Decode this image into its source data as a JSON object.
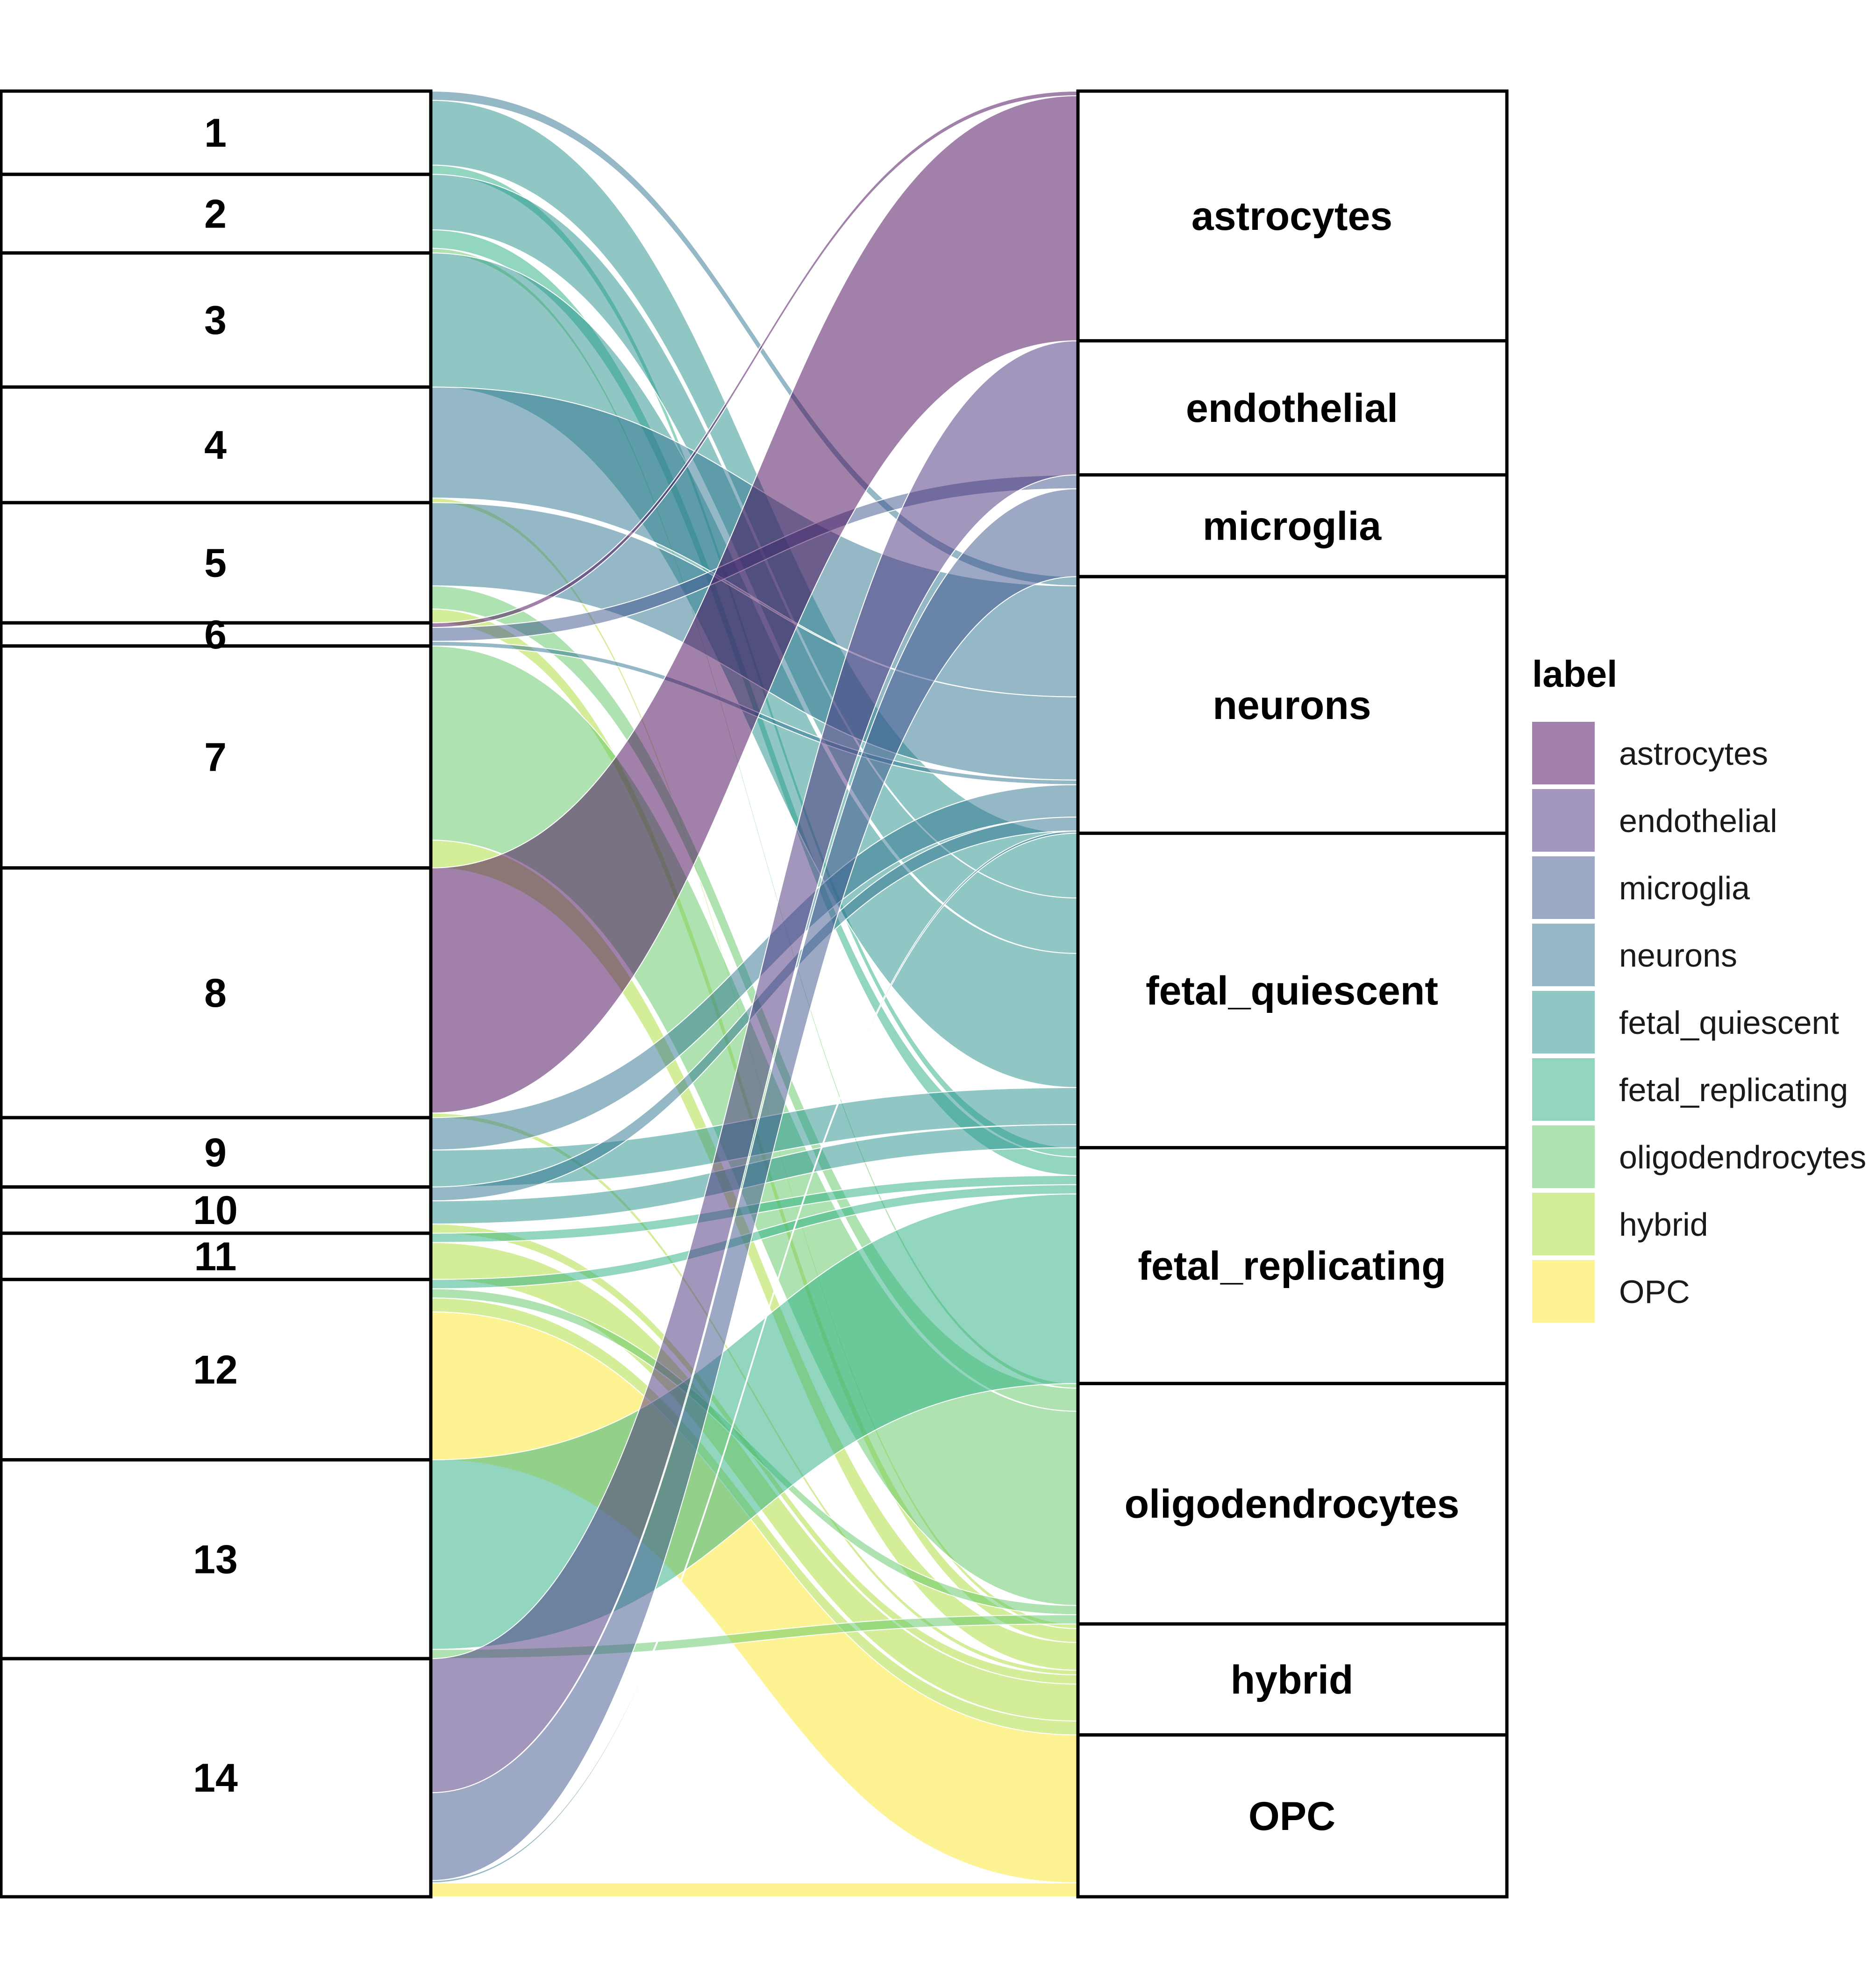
{
  "chart_data": {
    "type": "alluvial",
    "title": "",
    "xlabel": "",
    "ylabel": "",
    "left_axis": [
      "1",
      "2",
      "3",
      "4",
      "5",
      "6",
      "7",
      "8",
      "9",
      "10",
      "11",
      "12",
      "13",
      "14"
    ],
    "right_axis": [
      "astrocytes",
      "endothelial",
      "microglia",
      "neurons",
      "fetal_quiescent",
      "fetal_replicating",
      "oligodendrocytes",
      "hybrid",
      "OPC"
    ],
    "legend": {
      "title": "label",
      "position": "right",
      "items": [
        {
          "label": "astrocytes",
          "color": "#440154"
        },
        {
          "label": "endothelial",
          "color": "#472D7B"
        },
        {
          "label": "microglia",
          "color": "#3B528B"
        },
        {
          "label": "neurons",
          "color": "#2C728E"
        },
        {
          "label": "fetal_quiescent",
          "color": "#21908C"
        },
        {
          "label": "fetal_replicating",
          "color": "#27AD81"
        },
        {
          "label": "oligodendrocytes",
          "color": "#5DC863"
        },
        {
          "label": "hybrid",
          "color": "#AADC32"
        },
        {
          "label": "OPC",
          "color": "#FDE725"
        }
      ]
    },
    "flows": [
      {
        "cluster": "1",
        "label": "neurons",
        "value": 0.2
      },
      {
        "cluster": "1",
        "label": "fetal_quiescent",
        "value": 1.4
      },
      {
        "cluster": "1",
        "label": "fetal_replicating",
        "value": 0.2
      },
      {
        "cluster": "2",
        "label": "fetal_quiescent",
        "value": 1.2
      },
      {
        "cluster": "2",
        "label": "fetal_replicating",
        "value": 0.4
      },
      {
        "cluster": "2",
        "label": "oligodendrocytes",
        "value": 0.1
      },
      {
        "cluster": "3",
        "label": "fetal_quiescent",
        "value": 2.9
      },
      {
        "cluster": "4",
        "label": "neurons",
        "value": 2.4
      },
      {
        "cluster": "4",
        "label": "hybrid",
        "value": 0.1
      },
      {
        "cluster": "5",
        "label": "neurons",
        "value": 1.8
      },
      {
        "cluster": "5",
        "label": "oligodendrocytes",
        "value": 0.5
      },
      {
        "cluster": "5",
        "label": "hybrid",
        "value": 0.3
      },
      {
        "cluster": "6",
        "label": "astrocytes",
        "value": 0.1
      },
      {
        "cluster": "6",
        "label": "microglia",
        "value": 0.3
      },
      {
        "cluster": "6",
        "label": "neurons",
        "value": 0.1
      },
      {
        "cluster": "7",
        "label": "hybrid",
        "value": 0.6
      },
      {
        "cluster": "7",
        "label": "oligodendrocytes",
        "value": 4.2
      },
      {
        "cluster": "8",
        "label": "astrocytes",
        "value": 5.3
      },
      {
        "cluster": "8",
        "label": "hybrid",
        "value": 0.1
      },
      {
        "cluster": "9",
        "label": "neurons",
        "value": 0.7
      },
      {
        "cluster": "9",
        "label": "fetal_quiescent",
        "value": 0.8
      },
      {
        "cluster": "10",
        "label": "neurons",
        "value": 0.3
      },
      {
        "cluster": "10",
        "label": "fetal_quiescent",
        "value": 0.5
      },
      {
        "cluster": "10",
        "label": "hybrid",
        "value": 0.2
      },
      {
        "cluster": "11",
        "label": "fetal_replicating",
        "value": 0.2
      },
      {
        "cluster": "11",
        "label": "hybrid",
        "value": 0.8
      },
      {
        "cluster": "12",
        "label": "fetal_replicating",
        "value": 0.2
      },
      {
        "cluster": "12",
        "label": "oligodendrocytes",
        "value": 0.2
      },
      {
        "cluster": "12",
        "label": "hybrid",
        "value": 0.3
      },
      {
        "cluster": "12",
        "label": "OPC",
        "value": 3.2
      },
      {
        "cluster": "13",
        "label": "fetal_replicating",
        "value": 4.1
      },
      {
        "cluster": "13",
        "label": "oligodendrocytes",
        "value": 0.2
      },
      {
        "cluster": "14",
        "label": "endothelial",
        "value": 2.9
      },
      {
        "cluster": "14",
        "label": "microglia",
        "value": 1.9
      },
      {
        "cluster": "14",
        "label": "neurons",
        "value": 0.05
      },
      {
        "cluster": "14",
        "label": "OPC",
        "value": 0.3
      }
    ]
  }
}
